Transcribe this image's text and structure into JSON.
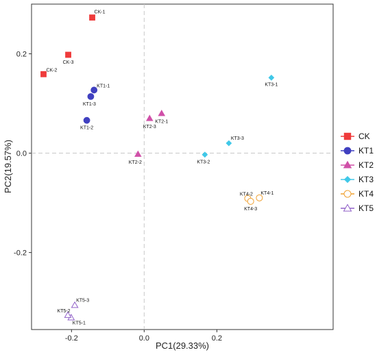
{
  "chart_data": {
    "type": "scatter",
    "xlabel": "PC1(29.33%)",
    "ylabel": "PC2(19.57%)",
    "xlim": [
      -0.31,
      0.52
    ],
    "ylim": [
      -0.355,
      0.3
    ],
    "xticks": [
      -0.2,
      0.0,
      0.2
    ],
    "yticks": [
      -0.2,
      0.0,
      0.2
    ],
    "xtick_labels": [
      "-0.2",
      "0.0",
      "0.2"
    ],
    "ytick_labels": [
      "-0.2",
      "0.0",
      "0.2"
    ],
    "reference_lines": {
      "x": 0.0,
      "y": 0.0,
      "style": "dashed"
    },
    "grid": false,
    "legend_position": "right",
    "series": [
      {
        "name": "CK",
        "marker": "square",
        "filled": true,
        "color": "#EF3B3B",
        "points": [
          {
            "label": "CK-1",
            "x": -0.143,
            "y": 0.273
          },
          {
            "label": "CK-2",
            "x": -0.277,
            "y": 0.159
          },
          {
            "label": "CK-3",
            "x": -0.209,
            "y": 0.198
          }
        ]
      },
      {
        "name": "KT1",
        "marker": "circle",
        "filled": true,
        "color": "#4040C0",
        "points": [
          {
            "label": "KT1-1",
            "x": -0.138,
            "y": 0.127
          },
          {
            "label": "KT1-2",
            "x": -0.158,
            "y": 0.066
          },
          {
            "label": "KT1-3",
            "x": -0.147,
            "y": 0.114
          }
        ]
      },
      {
        "name": "KT2",
        "marker": "triangle",
        "filled": true,
        "color": "#D050A8",
        "points": [
          {
            "label": "KT2-1",
            "x": 0.048,
            "y": 0.08
          },
          {
            "label": "KT2-2",
            "x": -0.017,
            "y": -0.002
          },
          {
            "label": "KT2-3",
            "x": 0.015,
            "y": 0.07
          }
        ]
      },
      {
        "name": "KT3",
        "marker": "diamond",
        "filled": true,
        "color": "#40C8E8",
        "points": [
          {
            "label": "KT3-1",
            "x": 0.35,
            "y": 0.152
          },
          {
            "label": "KT3-2",
            "x": 0.167,
            "y": -0.003
          },
          {
            "label": "KT3-3",
            "x": 0.233,
            "y": 0.02
          }
        ]
      },
      {
        "name": "KT4",
        "marker": "circle",
        "filled": false,
        "color": "#F0A030",
        "points": [
          {
            "label": "KT4-1",
            "x": 0.317,
            "y": -0.09
          },
          {
            "label": "KT4-2",
            "x": 0.285,
            "y": -0.091
          },
          {
            "label": "KT4-3",
            "x": 0.293,
            "y": -0.097
          }
        ]
      },
      {
        "name": "KT5",
        "marker": "triangle",
        "filled": false,
        "color": "#9060C8",
        "points": [
          {
            "label": "KT5-1",
            "x": -0.201,
            "y": -0.331
          },
          {
            "label": "KT5-2",
            "x": -0.21,
            "y": -0.326
          },
          {
            "label": "KT5-3",
            "x": -0.191,
            "y": -0.306
          }
        ]
      }
    ]
  }
}
